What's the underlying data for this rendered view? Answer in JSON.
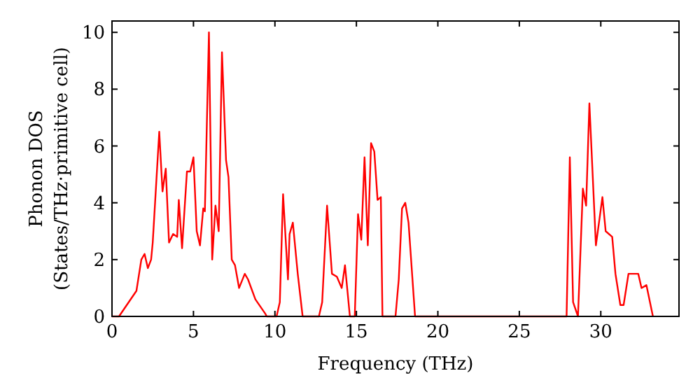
{
  "chart_data": {
    "type": "line",
    "xlabel": "Frequency (THz)",
    "ylabel": "Phonon DOS\n(States/THz·primitive cell)",
    "xlim": [
      0,
      34.8
    ],
    "ylim": [
      0,
      10.4
    ],
    "xticks": [
      0,
      5,
      10,
      15,
      20,
      25,
      30
    ],
    "yticks": [
      0,
      2,
      4,
      6,
      8,
      10
    ],
    "grid": false,
    "marker": "none",
    "line_style": "solid",
    "series": [
      {
        "color": "#ff0000",
        "x": [
          0,
          0.43,
          1.5,
          1.8,
          2.0,
          2.2,
          2.4,
          2.5,
          2.9,
          3.1,
          3.3,
          3.5,
          3.75,
          4.0,
          4.1,
          4.3,
          4.6,
          4.8,
          5.0,
          5.2,
          5.4,
          5.6,
          5.7,
          5.95,
          6.15,
          6.35,
          6.55,
          6.75,
          7.0,
          7.15,
          7.35,
          7.55,
          7.8,
          8.15,
          8.35,
          8.8,
          9.4,
          9.5,
          10.1,
          10.3,
          10.5,
          10.8,
          10.9,
          11.1,
          11.4,
          11.7,
          12.7,
          12.9,
          13.2,
          13.5,
          13.8,
          14.1,
          14.3,
          14.6,
          14.9,
          15.1,
          15.3,
          15.5,
          15.7,
          15.9,
          16.1,
          16.3,
          16.5,
          16.6,
          17.4,
          17.6,
          17.8,
          18.0,
          18.2,
          18.6,
          27.9,
          28.1,
          28.3,
          28.6,
          28.9,
          29.1,
          29.3,
          29.7,
          30.1,
          30.3,
          30.7,
          30.9,
          31.2,
          31.4,
          31.7,
          32.3,
          32.5,
          32.8,
          33.2
        ],
        "values": [
          0,
          0,
          0.9,
          2.0,
          2.2,
          1.7,
          2.0,
          2.6,
          6.5,
          4.4,
          5.2,
          2.6,
          2.9,
          2.8,
          4.1,
          2.4,
          5.1,
          5.1,
          5.6,
          3.0,
          2.5,
          3.8,
          3.7,
          10.0,
          2.0,
          3.9,
          3.0,
          9.3,
          5.5,
          4.9,
          2.0,
          1.8,
          1.0,
          1.5,
          1.3,
          0.6,
          0.1,
          0,
          0,
          0.5,
          4.3,
          1.3,
          2.9,
          3.3,
          1.5,
          0,
          0,
          0.5,
          3.9,
          1.5,
          1.4,
          1.0,
          1.8,
          0,
          0,
          3.6,
          2.7,
          5.6,
          2.5,
          6.1,
          5.8,
          4.1,
          4.2,
          0,
          0,
          1.3,
          3.8,
          4.0,
          3.3,
          0,
          0,
          5.6,
          0.5,
          0,
          4.5,
          3.9,
          7.5,
          2.5,
          4.2,
          3.0,
          2.8,
          1.5,
          0.4,
          0.4,
          1.5,
          1.5,
          1.0,
          1.1,
          0
        ]
      }
    ]
  }
}
